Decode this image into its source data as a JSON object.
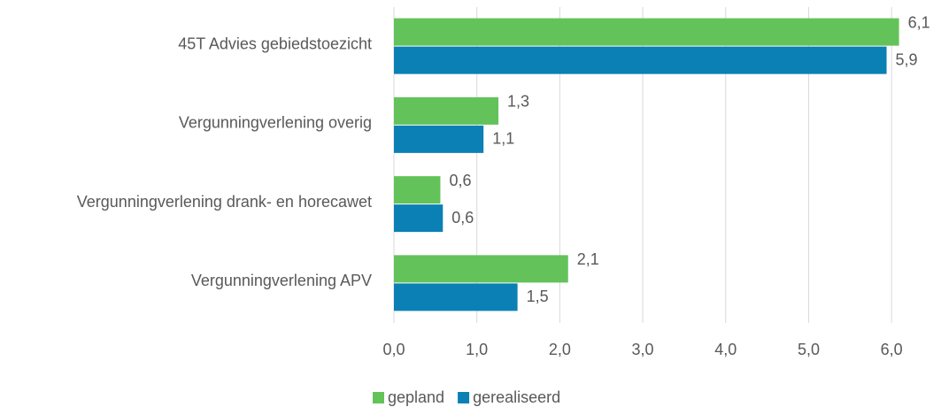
{
  "chart_data": {
    "type": "bar",
    "orientation": "horizontal",
    "categories": [
      "45T Advies gebiedstoezicht",
      "Vergunningverlening overig",
      "Vergunningverlening drank- en horecawet",
      "Vergunningverlening APV"
    ],
    "series": [
      {
        "name": "gepland",
        "color": "#63c35a",
        "values": [
          6.09,
          1.26,
          0.56,
          2.1
        ],
        "value_labels": [
          "6,1",
          "1,3",
          "0,6",
          "2,1"
        ]
      },
      {
        "name": "gerealiseerd",
        "color": "#0a80b4",
        "values": [
          5.94,
          1.08,
          0.59,
          1.49
        ],
        "value_labels": [
          "5,9",
          "1,1",
          "0,6",
          "1,5"
        ]
      }
    ],
    "xlim": [
      0,
      6.5
    ],
    "xticks": [
      {
        "value": 0,
        "label": "0,0"
      },
      {
        "value": 1,
        "label": "1,0"
      },
      {
        "value": 2,
        "label": "2,0"
      },
      {
        "value": 3,
        "label": "3,0"
      },
      {
        "value": 4,
        "label": "4,0"
      },
      {
        "value": 5,
        "label": "5,0"
      },
      {
        "value": 6,
        "label": "6,0"
      }
    ],
    "grid": true,
    "legend": "bottom"
  }
}
